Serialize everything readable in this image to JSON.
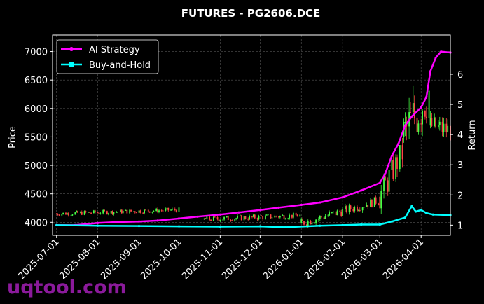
{
  "chart_data": {
    "type": "line",
    "title": "FUTURES - PG2606.DCE",
    "ylabel": "Price",
    "ylabel_right": "Return",
    "x_ticks": [
      "2025-07-01",
      "2025-08-01",
      "2025-09-01",
      "2025-10-01",
      "2025-11-01",
      "2025-12-01",
      "2026-01-01",
      "2026-02-01",
      "2026-03-01",
      "2026-04-01"
    ],
    "x_range": [
      "2025-06-28",
      "2026-04-23"
    ],
    "y_ticks": [
      4000,
      4500,
      5000,
      5500,
      6000,
      6500,
      7000
    ],
    "ylim": [
      3770,
      7290
    ],
    "y2_ticks": [
      1,
      2,
      3,
      4,
      5,
      6
    ],
    "y2lim": [
      0.66,
      7.3
    ],
    "grid": true,
    "legend_position": "upper-left",
    "series": [
      {
        "name": "AI Strategy",
        "color": "#ff00ff",
        "axis": "right",
        "points": [
          [
            "2025-07-01",
            1.0
          ],
          [
            "2025-07-15",
            1.0
          ],
          [
            "2025-08-01",
            1.07
          ],
          [
            "2025-08-15",
            1.1
          ],
          [
            "2025-09-01",
            1.12
          ],
          [
            "2025-09-15",
            1.15
          ],
          [
            "2025-10-01",
            1.22
          ],
          [
            "2025-10-15",
            1.28
          ],
          [
            "2025-11-01",
            1.35
          ],
          [
            "2025-11-15",
            1.42
          ],
          [
            "2025-12-01",
            1.5
          ],
          [
            "2025-12-15",
            1.58
          ],
          [
            "2026-01-01",
            1.67
          ],
          [
            "2026-01-15",
            1.75
          ],
          [
            "2026-02-01",
            1.92
          ],
          [
            "2026-02-15",
            2.15
          ],
          [
            "2026-03-01",
            2.4
          ],
          [
            "2026-03-05",
            2.7
          ],
          [
            "2026-03-10",
            3.3
          ],
          [
            "2026-03-15",
            3.7
          ],
          [
            "2026-03-20",
            4.3
          ],
          [
            "2026-03-25",
            4.6
          ],
          [
            "2026-04-01",
            4.9
          ],
          [
            "2026-04-05",
            5.25
          ],
          [
            "2026-04-08",
            6.1
          ],
          [
            "2026-04-12",
            6.55
          ],
          [
            "2026-04-16",
            6.75
          ],
          [
            "2026-04-23",
            6.72
          ]
        ]
      },
      {
        "name": "Buy-and-Hold",
        "color": "#00ffff",
        "axis": "right",
        "points": [
          [
            "2025-07-01",
            1.0
          ],
          [
            "2025-08-01",
            0.98
          ],
          [
            "2025-09-01",
            0.97
          ],
          [
            "2025-10-01",
            0.96
          ],
          [
            "2025-11-01",
            0.95
          ],
          [
            "2025-12-01",
            0.96
          ],
          [
            "2025-12-20",
            0.93
          ],
          [
            "2026-01-15",
            0.98
          ],
          [
            "2026-02-01",
            1.0
          ],
          [
            "2026-02-15",
            1.02
          ],
          [
            "2026-03-01",
            1.02
          ],
          [
            "2026-03-10",
            1.12
          ],
          [
            "2026-03-20",
            1.25
          ],
          [
            "2026-03-25",
            1.63
          ],
          [
            "2026-03-28",
            1.45
          ],
          [
            "2026-04-01",
            1.5
          ],
          [
            "2026-04-05",
            1.4
          ],
          [
            "2026-04-10",
            1.35
          ],
          [
            "2026-04-23",
            1.33
          ]
        ]
      }
    ],
    "candles": {
      "up_color": "#44ff44",
      "down_color": "#ff4444",
      "segments": [
        {
          "from": "2025-07-01",
          "to": "2025-10-01",
          "start": 4150,
          "end": 4220,
          "vol": 40
        },
        {
          "from": "2025-10-20",
          "to": "2025-12-31",
          "start": 4050,
          "end": 4120,
          "vol": 50
        },
        {
          "from": "2026-01-01",
          "to": "2026-02-28",
          "start": 3980,
          "end": 4380,
          "vol": 80
        },
        {
          "from": "2026-03-01",
          "to": "2026-03-18",
          "start": 4450,
          "end": 5200,
          "vol": 250
        },
        {
          "from": "2026-03-19",
          "to": "2026-04-07",
          "start": 5500,
          "end": 6300,
          "vol": 500
        },
        {
          "from": "2026-04-08",
          "to": "2026-04-23",
          "start": 5700,
          "end": 5600,
          "vol": 200
        }
      ]
    }
  },
  "legend": {
    "item1": "AI Strategy",
    "item2": "Buy-and-Hold"
  },
  "watermark": "uqtool.com"
}
